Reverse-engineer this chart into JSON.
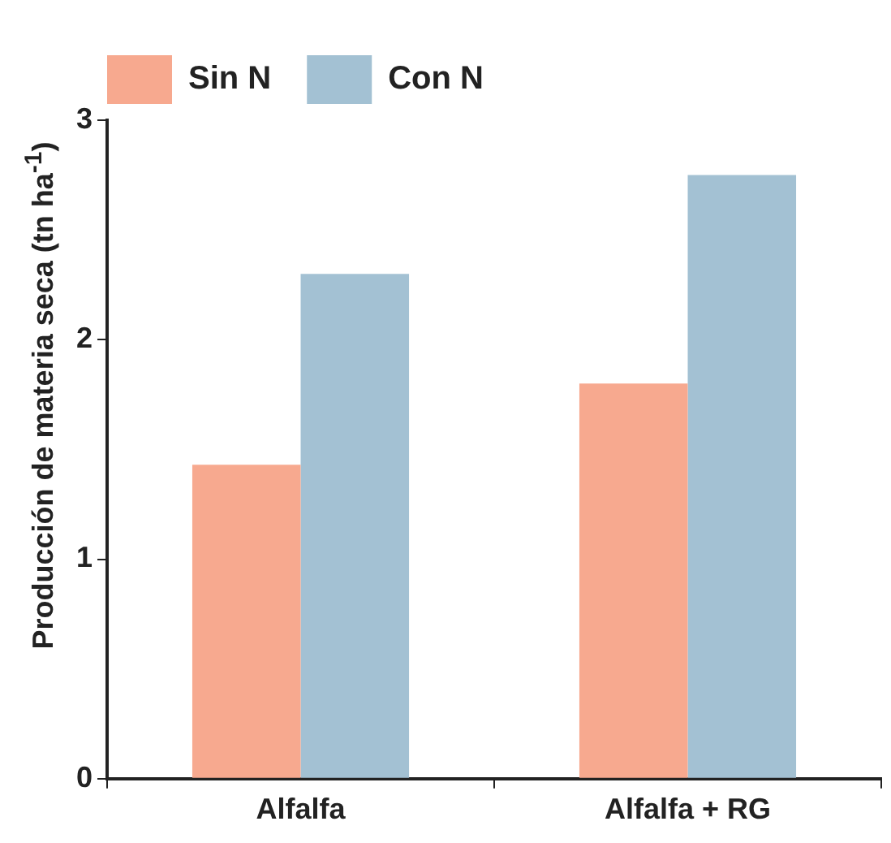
{
  "chart_data": {
    "type": "bar",
    "ylabel": "Producción de materia seca (tn ha$^{-1}$)",
    "categories": [
      "Alfalfa",
      "Alfalfa + RG"
    ],
    "series": [
      {
        "name": "Sin N",
        "color": "#f7a98f",
        "values": [
          1.43,
          1.8
        ]
      },
      {
        "name": "Con N",
        "color": "#a3c1d3",
        "values": [
          2.3,
          2.75
        ]
      }
    ],
    "ylim": [
      0,
      3
    ],
    "yticks": [
      0,
      1,
      2,
      3
    ],
    "grid": false,
    "legend": "top left"
  }
}
